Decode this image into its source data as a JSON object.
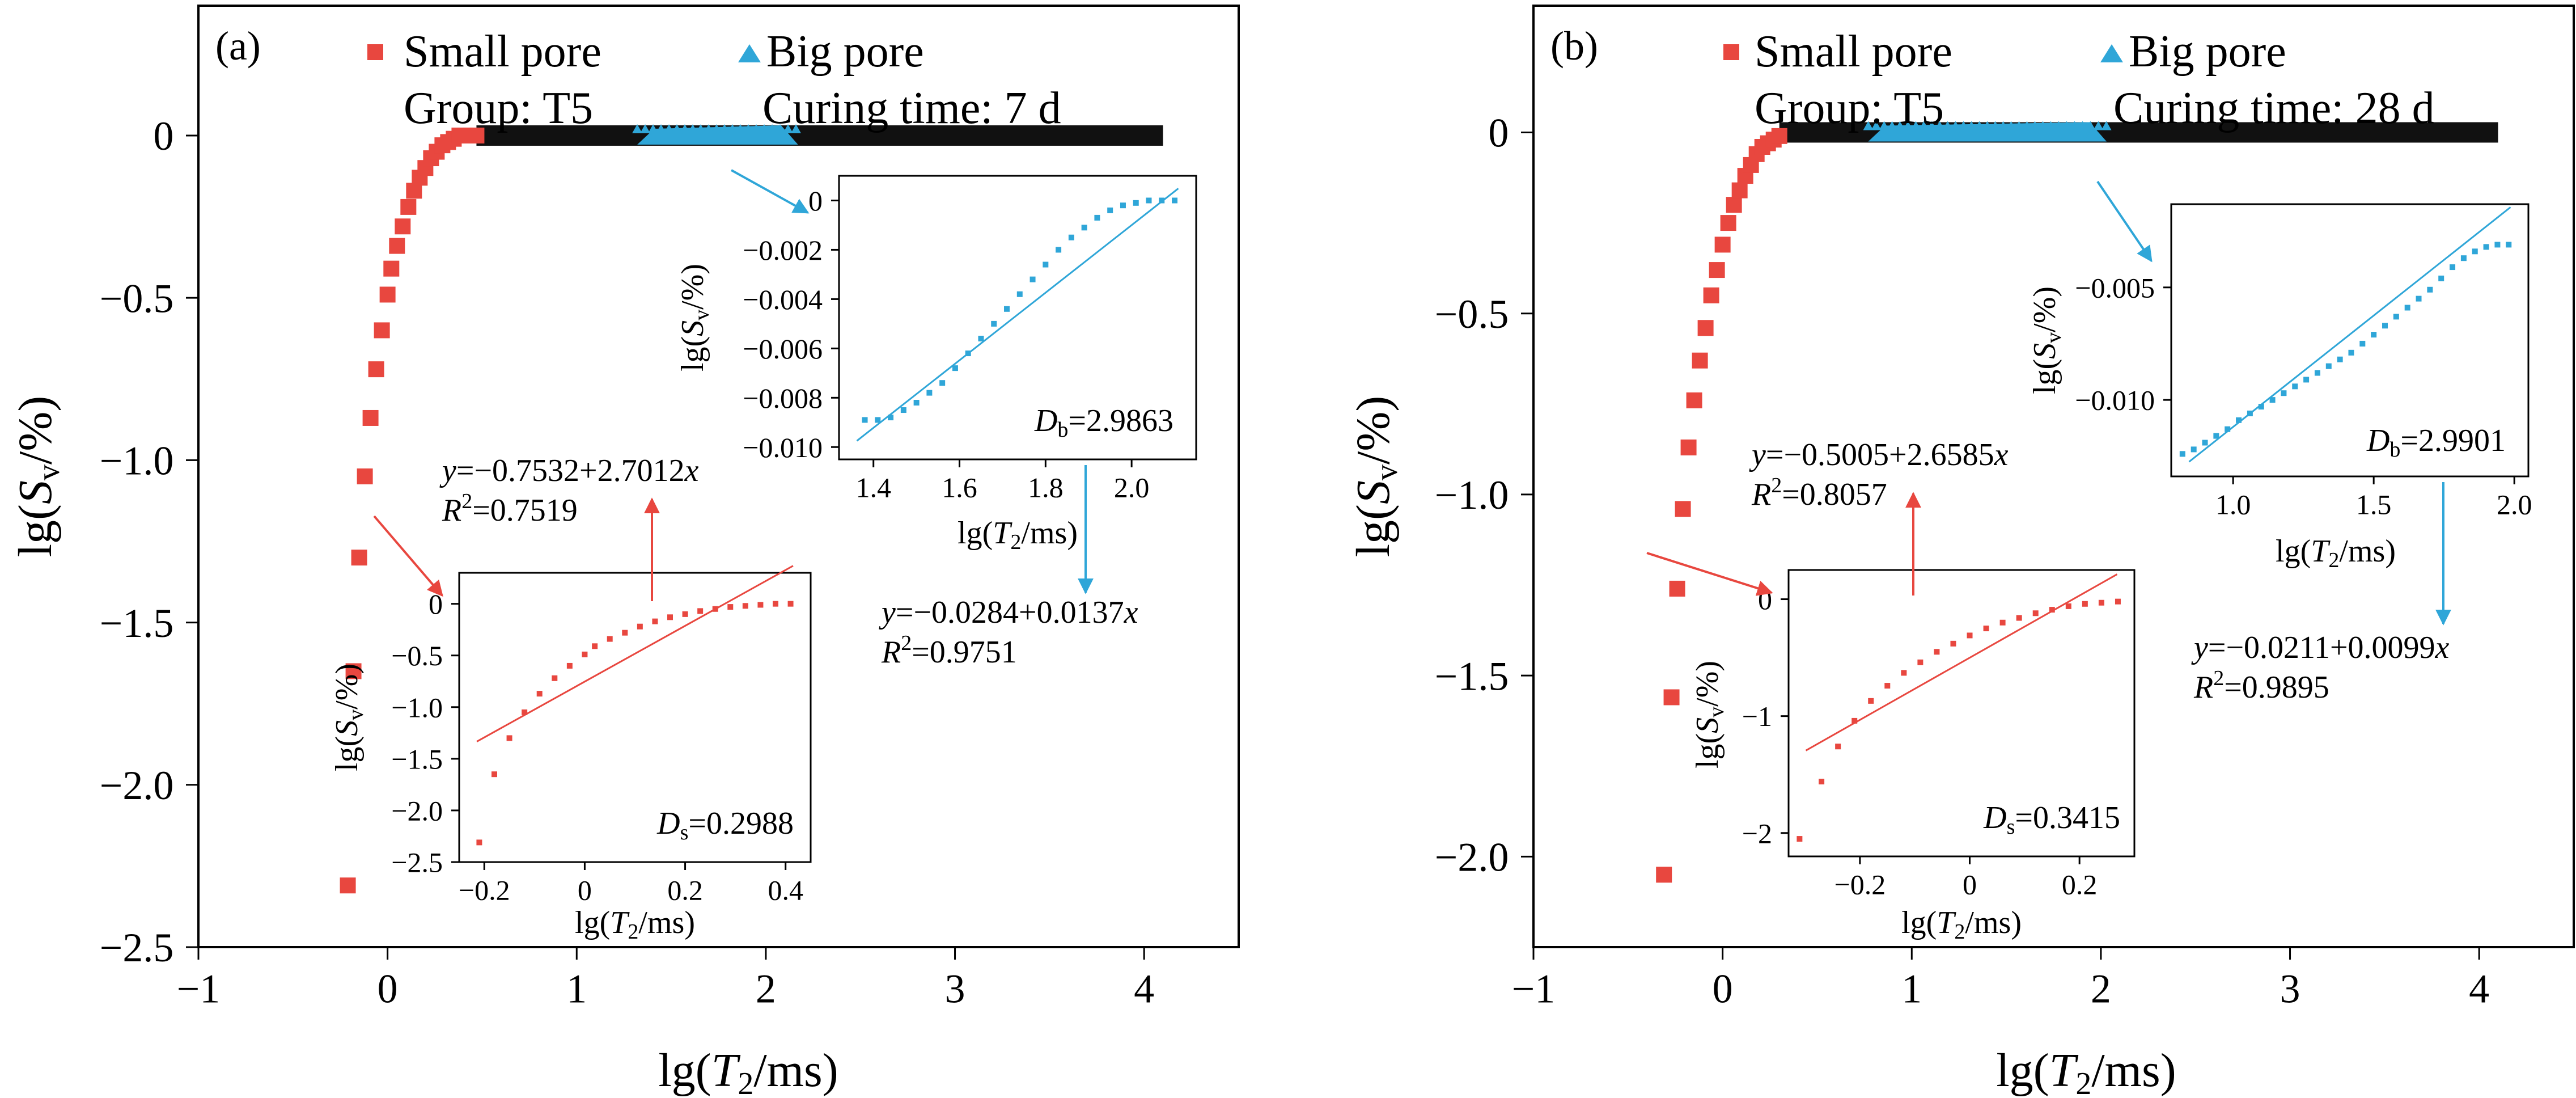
{
  "figure": {
    "colors": {
      "small": "#e8473f",
      "big": "#2fa6d8",
      "plateau": "#111111",
      "small_line": "#e8473f",
      "big_line": "#2fa6d8",
      "axis": "#000000"
    }
  },
  "chart_data": [
    {
      "type": "scatter",
      "panel_label": "(a)",
      "legend": {
        "small": "Small pore",
        "big": "Big pore",
        "group": "Group: T5",
        "curing": "Curing time: 7 d"
      },
      "xlabel": "lg(T2/ms)",
      "ylabel": "lg(Sv/%)",
      "xlim": [
        -1,
        4.5
      ],
      "ylim": [
        -2.5,
        0.4
      ],
      "xticks": [
        "−1",
        "0",
        "1",
        "2",
        "3",
        "4"
      ],
      "yticks": [
        "−2.5",
        "−2.0",
        "−1.5",
        "−1.0",
        "−0.5",
        "0"
      ],
      "series": [
        {
          "name": "Small pore",
          "x": [
            -0.21,
            -0.18,
            -0.15,
            -0.12,
            -0.09,
            -0.06,
            -0.03,
            0.0,
            0.02,
            0.05,
            0.08,
            0.11,
            0.14,
            0.17,
            0.2,
            0.23,
            0.26,
            0.29,
            0.32,
            0.35,
            0.38,
            0.41,
            0.44,
            0.47
          ],
          "y": [
            -2.31,
            -1.65,
            -1.3,
            -1.05,
            -0.87,
            -0.72,
            -0.6,
            -0.49,
            -0.41,
            -0.34,
            -0.28,
            -0.22,
            -0.17,
            -0.13,
            -0.1,
            -0.07,
            -0.05,
            -0.03,
            -0.02,
            -0.01,
            0.0,
            0.0,
            0.0,
            0.0
          ]
        },
        {
          "name": "Big pore",
          "x_range": [
            1.32,
            2.17
          ],
          "y": 0.0
        }
      ],
      "plateau": {
        "x_range": [
          0.47,
          4.1
        ],
        "y": 0.0
      },
      "insets": [
        {
          "name": "small",
          "xlabel": "lg(T2/ms)",
          "ylabel": "lg(Sv/%)",
          "xlim": [
            -0.25,
            0.45
          ],
          "ylim": [
            -2.5,
            0.3
          ],
          "xticks": [
            "−0.2",
            "0",
            "0.2",
            "0.4"
          ],
          "yticks": [
            "−2.5",
            "−2.0",
            "−1.5",
            "−1.0",
            "−0.5",
            "0"
          ],
          "x": [
            -0.21,
            -0.18,
            -0.15,
            -0.12,
            -0.09,
            -0.06,
            -0.03,
            0.0,
            0.02,
            0.05,
            0.08,
            0.11,
            0.14,
            0.17,
            0.2,
            0.23,
            0.26,
            0.29,
            0.32,
            0.35,
            0.38,
            0.41
          ],
          "y": [
            -2.31,
            -1.65,
            -1.3,
            -1.05,
            -0.87,
            -0.72,
            -0.6,
            -0.49,
            -0.41,
            -0.34,
            -0.28,
            -0.22,
            -0.17,
            -0.13,
            -0.1,
            -0.07,
            -0.05,
            -0.03,
            -0.02,
            -0.01,
            0.0,
            0.0
          ],
          "fit": {
            "intercept": -0.7532,
            "slope": 2.7012
          },
          "equation": "y=−0.7532+2.7012x",
          "r2": "R2=0.7519",
          "dim_label": "Ds=0.2988"
        },
        {
          "name": "big",
          "xlabel": "lg(T2/ms)",
          "ylabel": "lg(Sv/%)",
          "xlim": [
            1.32,
            2.15
          ],
          "ylim": [
            -0.0105,
            0.001
          ],
          "xticks": [
            "1.4",
            "1.6",
            "1.8",
            "2.0"
          ],
          "yticks": [
            "−0.010",
            "−0.008",
            "−0.006",
            "−0.004",
            "−0.002",
            "0"
          ],
          "x": [
            1.38,
            1.41,
            1.44,
            1.47,
            1.5,
            1.53,
            1.56,
            1.59,
            1.62,
            1.65,
            1.68,
            1.71,
            1.74,
            1.77,
            1.8,
            1.83,
            1.86,
            1.89,
            1.92,
            1.95,
            1.98,
            2.01,
            2.04,
            2.07,
            2.1
          ],
          "y": [
            -0.0089,
            -0.0089,
            -0.0088,
            -0.0085,
            -0.0082,
            -0.0078,
            -0.0074,
            -0.0068,
            -0.0062,
            -0.0056,
            -0.005,
            -0.0044,
            -0.0038,
            -0.0032,
            -0.0026,
            -0.002,
            -0.0015,
            -0.0011,
            -0.0007,
            -0.0004,
            -0.0002,
            -0.0001,
            0.0,
            0.0,
            0.0
          ],
          "fit": {
            "intercept": -0.0284,
            "slope": 0.0137
          },
          "equation": "y=−0.0284+0.0137x",
          "r2": "R2=0.9751",
          "dim_label": "Db=2.9863"
        }
      ]
    },
    {
      "type": "scatter",
      "panel_label": "(b)",
      "legend": {
        "small": "Small pore",
        "big": "Big pore",
        "group": "Group: T5",
        "curing": "Curing time: 28 d"
      },
      "xlabel": "lg(T2/ms)",
      "ylabel": "lg(Sv/%)",
      "xlim": [
        -1,
        4.5
      ],
      "ylim": [
        -2.25,
        0.35
      ],
      "xticks": [
        "−1",
        "0",
        "1",
        "2",
        "3",
        "4"
      ],
      "yticks": [
        "−2.0",
        "−1.5",
        "−1.0",
        "−0.5",
        "0"
      ],
      "series": [
        {
          "name": "Small pore",
          "x": [
            -0.31,
            -0.27,
            -0.24,
            -0.21,
            -0.18,
            -0.15,
            -0.12,
            -0.09,
            -0.06,
            -0.03,
            0.0,
            0.03,
            0.06,
            0.09,
            0.12,
            0.15,
            0.18,
            0.21,
            0.24,
            0.27,
            0.3
          ],
          "y": [
            -2.05,
            -1.56,
            -1.26,
            -1.04,
            -0.87,
            -0.74,
            -0.63,
            -0.54,
            -0.45,
            -0.38,
            -0.31,
            -0.25,
            -0.2,
            -0.16,
            -0.12,
            -0.09,
            -0.06,
            -0.04,
            -0.03,
            -0.02,
            -0.01
          ]
        },
        {
          "name": "Big pore",
          "x_range": [
            0.77,
            2.03
          ],
          "y": 0.0
        }
      ],
      "plateau": {
        "x_range": [
          0.3,
          4.1
        ],
        "y": 0.0
      },
      "insets": [
        {
          "name": "small",
          "xlabel": "lg(T2/ms)",
          "ylabel": "lg(Sv/%)",
          "xlim": [
            -0.33,
            0.3
          ],
          "ylim": [
            -2.2,
            0.25
          ],
          "xticks": [
            "−0.2",
            "0",
            "0.2"
          ],
          "yticks": [
            "−2",
            "−1",
            "0"
          ],
          "x": [
            -0.31,
            -0.27,
            -0.24,
            -0.21,
            -0.18,
            -0.15,
            -0.12,
            -0.09,
            -0.06,
            -0.03,
            0.0,
            0.03,
            0.06,
            0.09,
            0.12,
            0.15,
            0.18,
            0.21,
            0.24,
            0.27
          ],
          "y": [
            -2.05,
            -1.56,
            -1.26,
            -1.04,
            -0.87,
            -0.74,
            -0.63,
            -0.54,
            -0.45,
            -0.38,
            -0.31,
            -0.25,
            -0.2,
            -0.16,
            -0.12,
            -0.09,
            -0.06,
            -0.04,
            -0.03,
            -0.02
          ],
          "fit": {
            "intercept": -0.5005,
            "slope": 2.6585
          },
          "equation": "y=−0.5005+2.6585x",
          "r2": "R2=0.8057",
          "dim_label": "Ds=0.3415"
        },
        {
          "name": "big",
          "xlabel": "lg(T2/ms)",
          "ylabel": "lg(Sv/%)",
          "xlim": [
            0.78,
            2.05
          ],
          "ylim": [
            -0.0134,
            -0.0013
          ],
          "xticks": [
            "1.0",
            "1.5",
            "2.0"
          ],
          "yticks": [
            "−0.010",
            "−0.005"
          ],
          "x": [
            0.82,
            0.86,
            0.9,
            0.94,
            0.98,
            1.02,
            1.06,
            1.1,
            1.14,
            1.18,
            1.22,
            1.26,
            1.3,
            1.34,
            1.38,
            1.42,
            1.46,
            1.5,
            1.54,
            1.58,
            1.62,
            1.66,
            1.7,
            1.74,
            1.78,
            1.82,
            1.86,
            1.9,
            1.94,
            1.98
          ],
          "y": [
            -0.0124,
            -0.0122,
            -0.0119,
            -0.0116,
            -0.0113,
            -0.0109,
            -0.0106,
            -0.0103,
            -0.01,
            -0.0097,
            -0.0094,
            -0.0091,
            -0.0088,
            -0.0085,
            -0.0082,
            -0.0079,
            -0.0075,
            -0.0071,
            -0.0067,
            -0.0063,
            -0.0059,
            -0.0055,
            -0.0051,
            -0.0046,
            -0.0041,
            -0.0037,
            -0.0034,
            -0.0032,
            -0.0031,
            -0.0031
          ],
          "fit": {
            "intercept": -0.0211,
            "slope": 0.0099
          },
          "equation": "y=−0.0211+0.0099x",
          "r2": "R2=0.9895",
          "dim_label": "Db=2.9901"
        }
      ]
    }
  ]
}
